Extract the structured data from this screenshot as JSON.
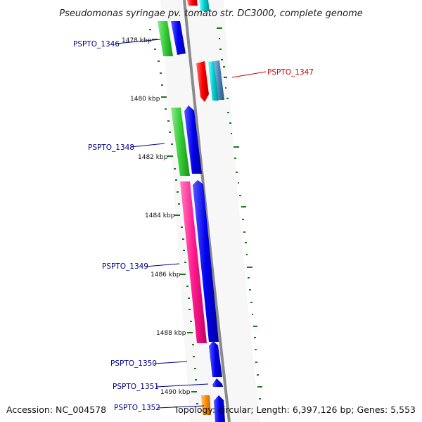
{
  "title": "Pseudomonas syringae pv. tomato str. DC3000, complete genome",
  "footer": {
    "accession": "Accession: NC_004578",
    "summary": "Topology: circular; Length: 6,397,126 bp; Genes: 5,553"
  },
  "scale_labels": [
    "1478 kbp",
    "1480 kbp",
    "1482 kbp",
    "1484 kbp",
    "1486 kbp",
    "1488 kbp",
    "1490 kbp"
  ],
  "genes": [
    {
      "label": "PSPTO_1346",
      "color": "#00008b"
    },
    {
      "label": "PSPTO_1347",
      "color": "#d00000"
    },
    {
      "label": "PSPTO_1348",
      "color": "#00008b"
    },
    {
      "label": "PSPTO_1349",
      "color": "#00008b"
    },
    {
      "label": "PSPTO_1350",
      "color": "#00008b"
    },
    {
      "label": "PSPTO_1351",
      "color": "#00008b"
    },
    {
      "label": "PSPTO_1352",
      "color": "#00008b"
    }
  ],
  "colors": {
    "backbone": "#8a8a8a",
    "cds": "#0000ee",
    "gene_green": "#33cc33",
    "gene_pink": "#ff1a8c",
    "gene_red": "#ff0000",
    "gene_cyan": "#00cccc",
    "gene_steel": "#4682b4",
    "gene_orange": "#ff8c00",
    "gc_skew": "#1a7a1a"
  }
}
